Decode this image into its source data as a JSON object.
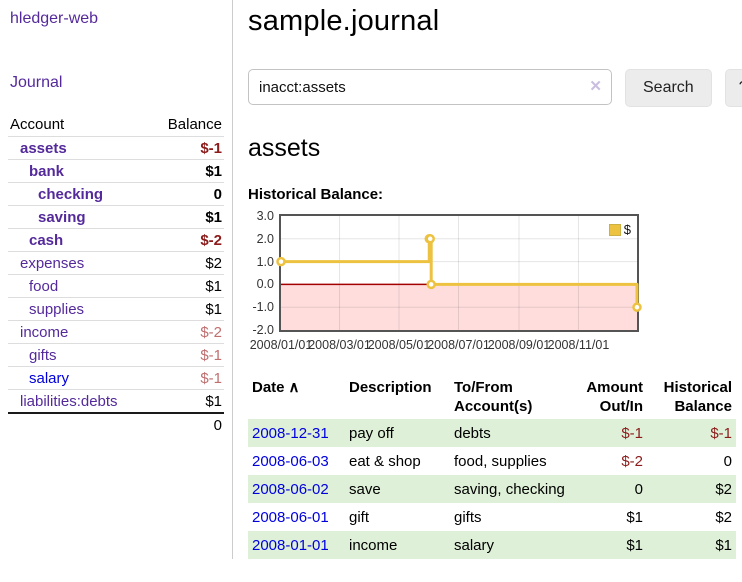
{
  "app": {
    "title": "hledger-web"
  },
  "colors": {
    "link_purple": "#542a9b",
    "link_blue": "#0000dd",
    "negative_dark": "#8c1b1b",
    "negative_light": "#c06f6f",
    "row_green": "#dff0d8",
    "chart_line": "#edc240",
    "chart_negative_fill": "#ffdddd",
    "chart_zero_line": "#a40000",
    "chart_border": "#545454",
    "button_bg": "#ececec",
    "clear_icon": "#c9bedf",
    "divider": "#cccccc"
  },
  "sidebar": {
    "journal_link": "Journal",
    "accounts_header": {
      "account": "Account",
      "balance": "Balance"
    },
    "accounts": [
      {
        "name": "assets",
        "balance": "$-1"
      },
      {
        "name": "bank",
        "balance": "$1"
      },
      {
        "name": "checking",
        "balance": "0"
      },
      {
        "name": "saving",
        "balance": "$1"
      },
      {
        "name": "cash",
        "balance": "$-2"
      },
      {
        "name": "expenses",
        "balance": "$2"
      },
      {
        "name": "food",
        "balance": "$1"
      },
      {
        "name": "supplies",
        "balance": "$1"
      },
      {
        "name": "income",
        "balance": "$-2"
      },
      {
        "name": "gifts",
        "balance": "$-1"
      },
      {
        "name": "salary",
        "balance": "$-1"
      },
      {
        "name": "liabilities:debts",
        "balance": "$1"
      }
    ],
    "total": "0"
  },
  "header": {
    "title": "sample.journal"
  },
  "search": {
    "value": "inacct:assets",
    "clear_icon": "✕",
    "button": "Search",
    "help_button": "?"
  },
  "account_page": {
    "title": "assets",
    "chart_label": "Historical Balance:"
  },
  "chart_data": {
    "type": "line",
    "title": "Historical Balance",
    "steps": true,
    "series": [
      {
        "name": "$",
        "color": "#edc240",
        "points": [
          [
            "2008-01-01",
            1
          ],
          [
            "2008-06-01",
            2
          ],
          [
            "2008-06-02",
            2
          ],
          [
            "2008-06-03",
            0
          ],
          [
            "2008-12-31",
            -1
          ]
        ]
      }
    ],
    "ylim": [
      -2,
      3
    ],
    "xrange": [
      "2008-01-01",
      "2008-12-31"
    ],
    "yticks": [
      "3.0",
      "2.0",
      "1.0",
      "0.0",
      "-1.0",
      "-2.0"
    ],
    "xticks": [
      "2008/01/01",
      "2008/03/01",
      "2008/05/01",
      "2008/07/01",
      "2008/09/01",
      "2008/11/01"
    ],
    "legend_position": "top-right",
    "grid": true,
    "negative_region_color": "#ffdddd",
    "zero_line_color": "#a40000"
  },
  "register": {
    "columns": [
      {
        "line1": "Date",
        "sort_icon": "∧"
      },
      {
        "line1": "Description"
      },
      {
        "line1": "To/From",
        "line2": "Account(s)"
      },
      {
        "line1": "Amount",
        "line2": "Out/In"
      },
      {
        "line1": "Historical",
        "line2": "Balance"
      }
    ],
    "rows": [
      {
        "date": "2008-12-31",
        "description": "pay off",
        "accounts": "debts",
        "amount": "$-1",
        "balance": "$-1"
      },
      {
        "date": "2008-06-03",
        "description": "eat & shop",
        "accounts": "food, supplies",
        "amount": "$-2",
        "balance": "0"
      },
      {
        "date": "2008-06-02",
        "description": "save",
        "accounts": "saving, checking",
        "amount": "0",
        "balance": "$2"
      },
      {
        "date": "2008-06-01",
        "description": "gift",
        "accounts": "gifts",
        "amount": "$1",
        "balance": "$2"
      },
      {
        "date": "2008-01-01",
        "description": "income",
        "accounts": "salary",
        "amount": "$1",
        "balance": "$1"
      }
    ]
  }
}
